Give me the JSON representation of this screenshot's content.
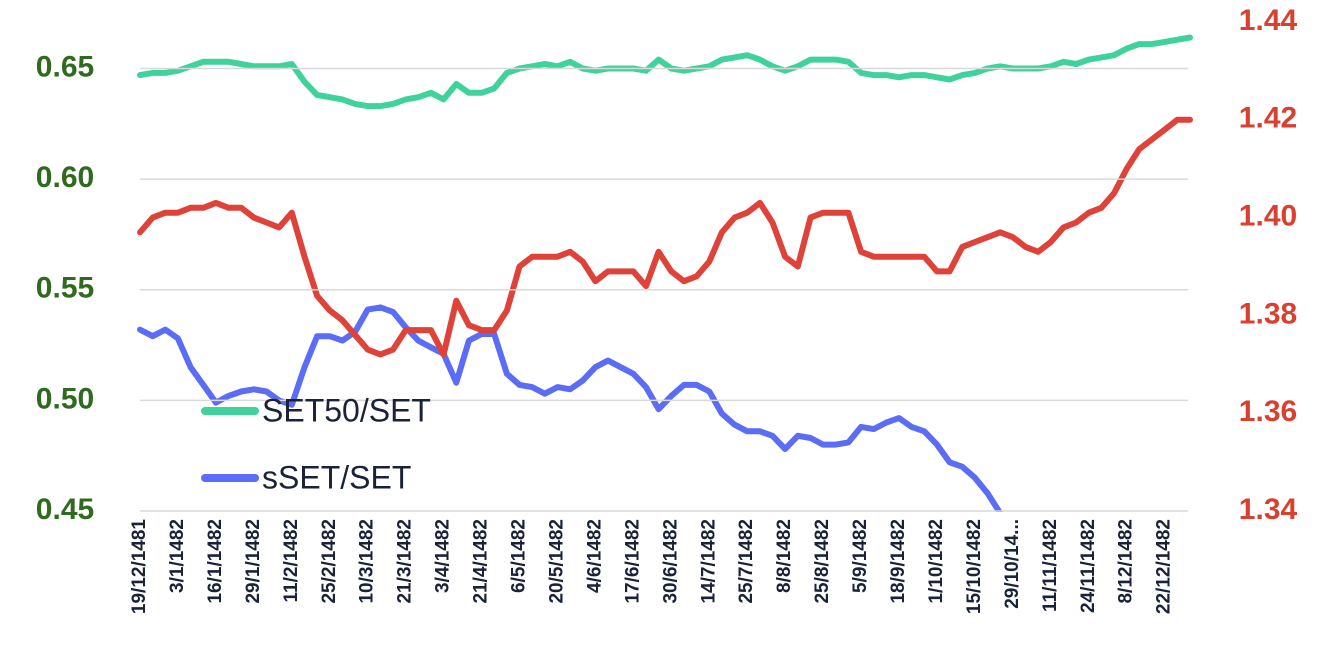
{
  "chart_data": {
    "type": "line",
    "categories": [
      "19/12/1481",
      null,
      null,
      "3/1/1482",
      null,
      null,
      "16/1/1482",
      null,
      null,
      "29/1/1482",
      null,
      null,
      "11/2/1482",
      null,
      null,
      "25/2/1482",
      null,
      null,
      "10/3/1482",
      null,
      null,
      "21/3/1482",
      null,
      null,
      "3/4/1482",
      null,
      null,
      "21/4/1482",
      null,
      null,
      "6/5/1482",
      null,
      null,
      "20/5/1482",
      null,
      null,
      "4/6/1482",
      null,
      null,
      "17/6/1482",
      null,
      null,
      "30/6/1482",
      null,
      null,
      "14/7/1482",
      null,
      null,
      "25/7/1482",
      null,
      null,
      "8/8/1482",
      null,
      null,
      "25/8/1482",
      null,
      null,
      "5/9/1482",
      null,
      null,
      "18/9/1482",
      null,
      null,
      "1/10/1482",
      null,
      null,
      "15/10/1482",
      null,
      null,
      "29/10/14...",
      null,
      null,
      "11/11/1482",
      null,
      null,
      "24/11/1482",
      null,
      null,
      "8/12/1482",
      null,
      null,
      "22/12/1482",
      null,
      null
    ],
    "series": [
      {
        "name": "SET50/SET",
        "color": "#3fd39b",
        "axis": "y",
        "values": [
          0.647,
          0.648,
          0.648,
          0.649,
          0.651,
          0.653,
          0.653,
          0.653,
          0.652,
          0.651,
          0.651,
          0.651,
          0.652,
          0.644,
          0.638,
          0.637,
          0.636,
          0.634,
          0.633,
          0.633,
          0.634,
          0.636,
          0.637,
          0.639,
          0.636,
          0.643,
          0.639,
          0.639,
          0.641,
          0.648,
          0.65,
          0.651,
          0.652,
          0.651,
          0.653,
          0.65,
          0.649,
          0.65,
          0.65,
          0.65,
          0.649,
          0.654,
          0.65,
          0.649,
          0.65,
          0.651,
          0.654,
          0.655,
          0.656,
          0.654,
          0.651,
          0.649,
          0.651,
          0.654,
          0.654,
          0.654,
          0.653,
          0.648,
          0.647,
          0.647,
          0.646,
          0.647,
          0.647,
          0.646,
          0.645,
          0.647,
          0.648,
          0.65,
          0.651,
          0.65,
          0.65,
          0.65,
          0.651,
          0.653,
          0.652,
          0.654,
          0.655,
          0.656,
          0.659,
          0.661,
          0.661,
          0.662,
          0.663,
          0.664
        ]
      },
      {
        "name": "sSET/SET",
        "color": "#5b6cf6",
        "axis": "y",
        "values": [
          0.532,
          0.529,
          0.532,
          0.528,
          0.515,
          0.507,
          0.499,
          0.502,
          0.504,
          0.505,
          0.504,
          0.5,
          0.498,
          0.515,
          0.529,
          0.529,
          0.527,
          0.531,
          0.541,
          0.542,
          0.54,
          0.533,
          0.527,
          0.524,
          0.521,
          0.508,
          0.527,
          0.53,
          0.53,
          0.512,
          0.507,
          0.506,
          0.503,
          0.506,
          0.505,
          0.509,
          0.515,
          0.518,
          0.515,
          0.512,
          0.506,
          0.496,
          0.502,
          0.507,
          0.507,
          0.504,
          0.494,
          0.489,
          0.486,
          0.486,
          0.484,
          0.478,
          0.484,
          0.483,
          0.48,
          0.48,
          0.481,
          0.488,
          0.487,
          0.49,
          0.492,
          0.488,
          0.486,
          0.48,
          0.472,
          0.47,
          0.465,
          0.458,
          0.449,
          null,
          null,
          null,
          null,
          null,
          null,
          null,
          null,
          null,
          null,
          null,
          null,
          null,
          null,
          null
        ]
      },
      {
        "color": "#df4238",
        "axis": "y2",
        "values": [
          1.397,
          1.4,
          1.401,
          1.401,
          1.402,
          1.402,
          1.403,
          1.402,
          1.402,
          1.4,
          1.399,
          1.398,
          1.401,
          1.392,
          1.384,
          1.381,
          1.379,
          1.376,
          1.373,
          1.372,
          1.373,
          1.377,
          1.377,
          1.377,
          1.372,
          1.383,
          1.378,
          1.377,
          1.377,
          1.381,
          1.39,
          1.392,
          1.392,
          1.392,
          1.393,
          1.391,
          1.387,
          1.389,
          1.389,
          1.389,
          1.386,
          1.393,
          1.389,
          1.387,
          1.388,
          1.391,
          1.397,
          1.4,
          1.401,
          1.403,
          1.399,
          1.392,
          1.39,
          1.4,
          1.401,
          1.401,
          1.401,
          1.393,
          1.392,
          1.392,
          1.392,
          1.392,
          1.392,
          1.389,
          1.389,
          1.394,
          1.395,
          1.396,
          1.397,
          1.396,
          1.394,
          1.393,
          1.395,
          1.398,
          1.399,
          1.401,
          1.402,
          1.405,
          1.41,
          1.414,
          1.416,
          1.418,
          1.42,
          1.42
        ]
      }
    ],
    "ylim": [
      0.45,
      0.671
    ],
    "yticks": [
      0.45,
      {
        "value": 0.5,
        "label": "0.50"
      },
      0.55,
      {
        "value": 0.6,
        "label": "0.60"
      },
      0.65
    ],
    "y2lim": [
      1.34,
      1.44
    ],
    "y2ticks": [
      1.34,
      1.36,
      1.38,
      {
        "value": 1.4,
        "label": "1.40"
      },
      1.42,
      1.44
    ],
    "grid": true
  }
}
